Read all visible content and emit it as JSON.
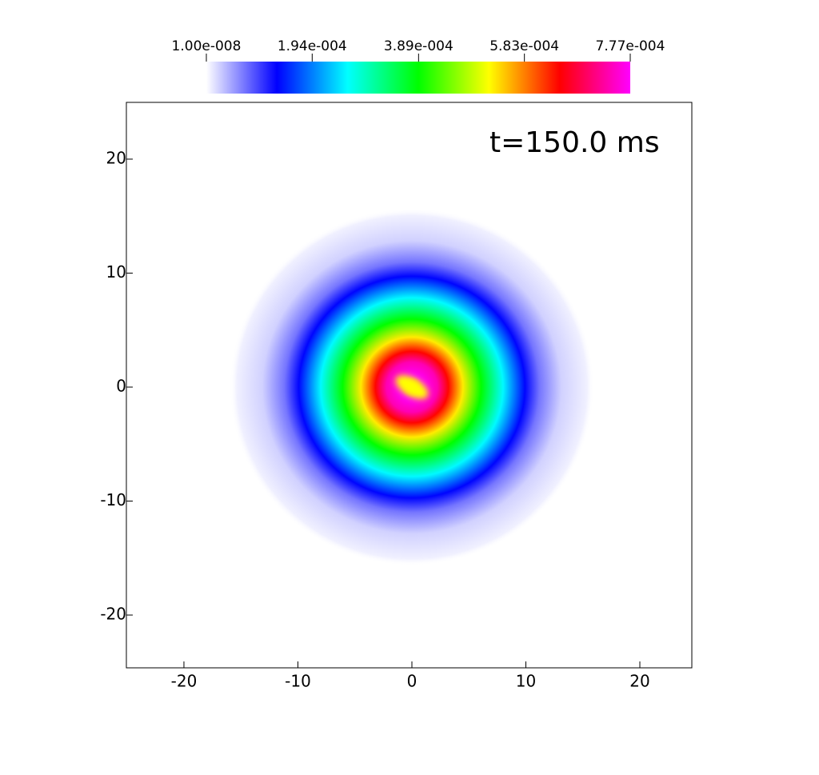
{
  "chart_data": {
    "type": "heatmap",
    "annotation": "t=150.0 ms",
    "xlim": [
      -25.05,
      24.56
    ],
    "ylim": [
      -24.63,
      24.98
    ],
    "xticks": [
      -20,
      -10,
      0,
      10,
      20
    ],
    "yticks": [
      -20,
      -10,
      0,
      10,
      20
    ],
    "colormap": [
      "#ffffff",
      "#0000ff",
      "#00ffff",
      "#00ff00",
      "#ffff00",
      "#ff0000",
      "#ff00ff"
    ],
    "colorbar": {
      "lim": [
        1e-08,
        0.000777
      ],
      "ticks": [
        {
          "value": 1e-08,
          "label": "1.00e-008"
        },
        {
          "value": 0.000194,
          "label": "1.94e-004"
        },
        {
          "value": 0.000389,
          "label": "3.89e-004"
        },
        {
          "value": 0.000583,
          "label": "5.83e-004"
        },
        {
          "value": 0.000777,
          "label": "7.77e-004"
        }
      ]
    }
  }
}
